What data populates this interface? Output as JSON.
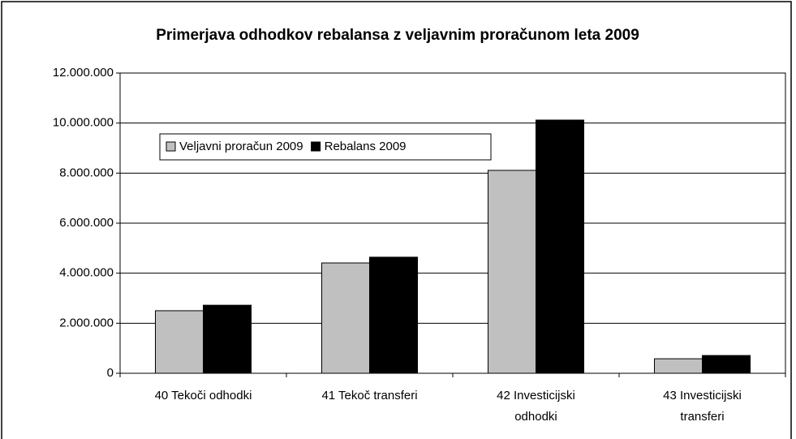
{
  "chart_data": {
    "type": "bar",
    "title": "Primerjava odhodkov rebalansa z veljavnim proračunom leta 2009",
    "categories": [
      "40 Tekoči odhodki",
      "41 Tekoč transferi",
      "42 Investicijski\nodhodki",
      "43 Investicijski\ntransferi"
    ],
    "series": [
      {
        "name": "Veljavni proračun 2009",
        "color": "#c0c0c0",
        "values": [
          2500000,
          4410000,
          8110000,
          580000
        ]
      },
      {
        "name": "Rebalans 2009",
        "color": "#000000",
        "values": [
          2720000,
          4640000,
          10120000,
          710000
        ]
      }
    ],
    "ylim": [
      0,
      12000000
    ],
    "yticks": [
      0,
      {
        "value": 2000000,
        "label": "2.000.000"
      },
      {
        "value": 4000000,
        "label": "4.000.000"
      },
      {
        "value": 6000000,
        "label": "6.000.000"
      },
      {
        "value": 8000000,
        "label": "8.000.000"
      },
      {
        "value": 10000000,
        "label": "10.000.000"
      },
      {
        "value": 12000000,
        "label": "12.000.000"
      }
    ],
    "grid": true
  }
}
